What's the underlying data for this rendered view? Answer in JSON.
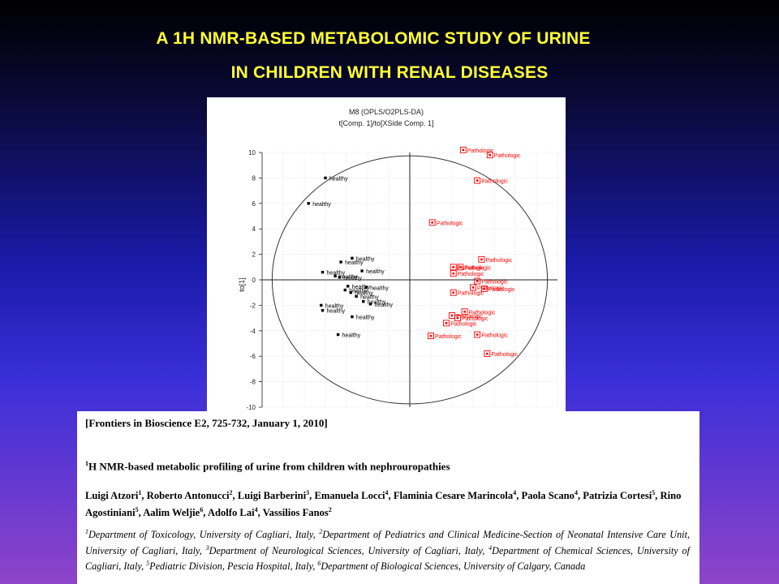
{
  "slide": {
    "title_line1": "A 1H NMR-BASED METABOLOMIC STUDY OF URINE",
    "title_line2": "IN CHILDREN WITH RENAL DISEASES",
    "title_color": "#ffff33"
  },
  "chart_data": {
    "type": "scatter",
    "title": "M8 (OPLS/O2PLS-DA)",
    "subtitle": "t[Comp. 1]/to[XSide Comp. 1]",
    "xlabel": "",
    "ylabel": "to[1]",
    "ylim": [
      -10,
      10
    ],
    "y_ticks": [
      10,
      8,
      6,
      4,
      2,
      0,
      -2,
      -4,
      -6,
      -8,
      -10
    ],
    "grid": true,
    "ellipse": true,
    "series": [
      {
        "name": "healthy",
        "color": "#000000",
        "marker": "square",
        "points": [
          {
            "x": -6.0,
            "y": 8.0,
            "label": "healthy"
          },
          {
            "x": -7.2,
            "y": 6.0,
            "label": "healthy"
          },
          {
            "x": -4.1,
            "y": 1.7,
            "label": "healthy"
          },
          {
            "x": -4.9,
            "y": 1.4,
            "label": "healthy"
          },
          {
            "x": -6.2,
            "y": 0.6,
            "label": "healthy"
          },
          {
            "x": -5.3,
            "y": 0.3,
            "label": "healthy"
          },
          {
            "x": -5.0,
            "y": 0.2,
            "label": "healthy"
          },
          {
            "x": -3.4,
            "y": 0.7,
            "label": "healthy"
          },
          {
            "x": -4.4,
            "y": -0.5,
            "label": "healthy"
          },
          {
            "x": -4.6,
            "y": -0.8,
            "label": "healthy"
          },
          {
            "x": -3.1,
            "y": -0.6,
            "label": "healthy"
          },
          {
            "x": -4.2,
            "y": -1.0,
            "label": "healthy"
          },
          {
            "x": -3.8,
            "y": -1.3,
            "label": "healthy"
          },
          {
            "x": -3.3,
            "y": -1.7,
            "label": "healthy"
          },
          {
            "x": -2.8,
            "y": -1.9,
            "label": "healthy"
          },
          {
            "x": -6.3,
            "y": -2.0,
            "label": "healthy"
          },
          {
            "x": -6.2,
            "y": -2.4,
            "label": "healthy"
          },
          {
            "x": -4.1,
            "y": -2.9,
            "label": "healthy"
          },
          {
            "x": -5.1,
            "y": -4.3,
            "label": "healthy"
          }
        ]
      },
      {
        "name": "Pathologic",
        "color": "#ff0000",
        "marker": "square",
        "points": [
          {
            "x": 3.8,
            "y": 10.2,
            "label": "Pathologic"
          },
          {
            "x": 5.7,
            "y": 9.8,
            "label": "Pathologic"
          },
          {
            "x": 4.8,
            "y": 7.8,
            "label": "Pathologic"
          },
          {
            "x": 1.6,
            "y": 4.5,
            "label": "Pathologic"
          },
          {
            "x": 5.1,
            "y": 1.6,
            "label": "Pathologic"
          },
          {
            "x": 3.1,
            "y": 1.0,
            "label": "Pathologic"
          },
          {
            "x": 3.6,
            "y": 1.0,
            "label": "Pathologic"
          },
          {
            "x": 3.1,
            "y": 0.5,
            "label": "Pathologic"
          },
          {
            "x": 4.8,
            "y": -0.1,
            "label": "Pathologic"
          },
          {
            "x": 4.5,
            "y": -0.6,
            "label": "Pathologic"
          },
          {
            "x": 5.3,
            "y": -0.7,
            "label": "Pathologic"
          },
          {
            "x": 3.1,
            "y": -1.0,
            "label": "Pathologic"
          },
          {
            "x": 3.9,
            "y": -2.5,
            "label": "Pathologic"
          },
          {
            "x": 3.0,
            "y": -2.8,
            "label": "Pathologic"
          },
          {
            "x": 3.4,
            "y": -3.0,
            "label": "Pathologic"
          },
          {
            "x": 2.6,
            "y": -3.4,
            "label": "Pathologic"
          },
          {
            "x": 1.5,
            "y": -4.4,
            "label": "Pathologic"
          },
          {
            "x": 4.8,
            "y": -4.3,
            "label": "Pathologic"
          },
          {
            "x": 5.5,
            "y": -5.8,
            "label": "Pathologic"
          }
        ]
      }
    ]
  },
  "paper": {
    "reference": "[Frontiers in Bioscience E2, 725-732, January 1, 2010]",
    "title_sup": "1",
    "title_text": "H NMR-based metabolic profiling of urine from children with nephrouropathies",
    "authors": [
      {
        "name": "Luigi Atzori",
        "sup": "1",
        "sep": ", "
      },
      {
        "name": "Roberto Antonucci",
        "sup": "2",
        "sep": ", "
      },
      {
        "name": "Luigi Barberini",
        "sup": "3",
        "sep": ", "
      },
      {
        "name": "Emanuela Locci",
        "sup": "4",
        "sep": ", "
      },
      {
        "name": "Flaminia Cesare Marincola",
        "sup": "4",
        "sep": ", "
      },
      {
        "name": "Paola Scano",
        "sup": "4",
        "sep": ", "
      },
      {
        "name": "Patrizia Cortesi",
        "sup": "5",
        "sep": ", "
      },
      {
        "name": "Rino Agostiniani",
        "sup": "5",
        "sep": ", "
      },
      {
        "name": "Aalim Weljie",
        "sup": "6",
        "sep": ", "
      },
      {
        "name": "Adolfo Lai",
        "sup": "4",
        "sep": ", "
      },
      {
        "name": "Vassilios Fanos",
        "sup": "2",
        "sep": ""
      }
    ],
    "affiliations": [
      {
        "sup": "1",
        "text": "Department  of Toxicology, University of Cagliari, Italy, "
      },
      {
        "sup": "2",
        "text": "Department of Pediatrics and Clinical Medicine-Section of Neonatal Intensive Care Unit, University of Cagliari, Italy, "
      },
      {
        "sup": "3",
        "text": "Department of Neurological Sciences, University of Cagliari, Italy, "
      },
      {
        "sup": "4",
        "text": "Department of Chemical Sciences, University of Cagliari, Italy, "
      },
      {
        "sup": "5",
        "text": "Pediatric Division, Pescia Hospital, Italy, "
      },
      {
        "sup": "6",
        "text": "Department of Biological Sciences, University of Calgary, Canada"
      }
    ]
  }
}
